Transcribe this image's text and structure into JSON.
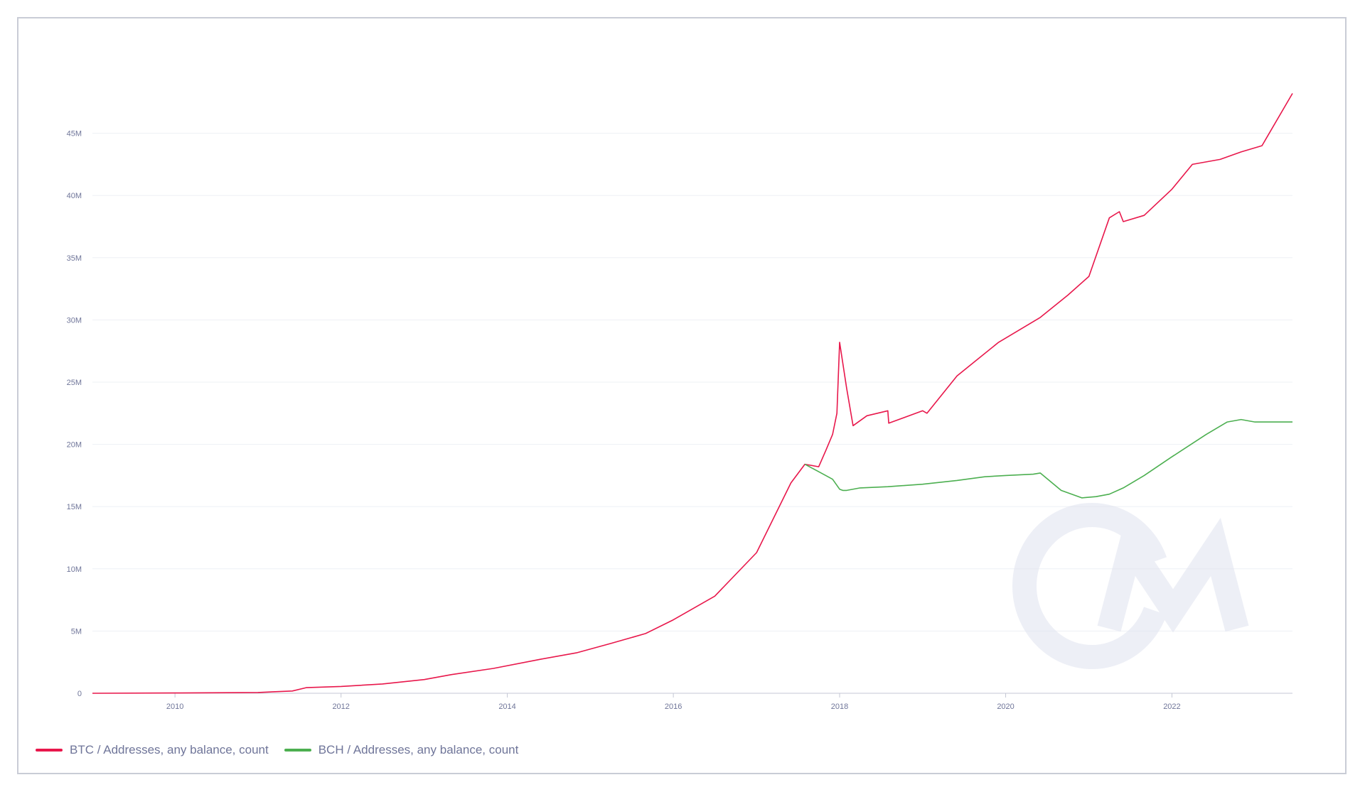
{
  "chart_data": {
    "type": "line",
    "xlabel": "",
    "ylabel": "",
    "x_ticks": [
      "2010",
      "2012",
      "2014",
      "2016",
      "2018",
      "2020",
      "2022"
    ],
    "y_ticks": [
      "0",
      "5M",
      "10M",
      "15M",
      "20M",
      "25M",
      "30M",
      "35M",
      "40M",
      "45M"
    ],
    "xlim": [
      "2009-01-03",
      "2023-06-15"
    ],
    "ylim": [
      0,
      50000000
    ],
    "grid": true,
    "legend_position": "bottom-left",
    "watermark": "CM",
    "series": [
      {
        "name": "BTC / Addresses, any balance, count",
        "color": "#e8174b",
        "x": [
          "2009-01-03",
          "2010-01-01",
          "2011-01-01",
          "2011-06-01",
          "2011-08-01",
          "2012-01-01",
          "2012-07-01",
          "2013-01-01",
          "2013-05-01",
          "2013-11-01",
          "2014-06-01",
          "2014-11-01",
          "2015-04-01",
          "2015-09-01",
          "2016-01-01",
          "2016-07-01",
          "2017-01-01",
          "2017-06-01",
          "2017-08-01",
          "2017-10-01",
          "2017-11-01",
          "2017-12-01",
          "2017-12-20",
          "2018-01-01",
          "2018-02-01",
          "2018-03-01",
          "2018-05-01",
          "2018-08-01",
          "2018-08-05",
          "2019-01-01",
          "2019-01-20",
          "2019-06-01",
          "2019-12-01",
          "2020-06-01",
          "2020-10-01",
          "2021-01-01",
          "2021-04-01",
          "2021-05-15",
          "2021-06-01",
          "2021-09-01",
          "2022-01-01",
          "2022-04-01",
          "2022-08-01",
          "2022-11-01",
          "2023-02-01",
          "2023-06-15"
        ],
        "values": [
          0,
          20000,
          60000,
          180000,
          450000,
          550000,
          750000,
          1100000,
          1500000,
          2000000,
          2750000,
          3250000,
          4000000,
          4800000,
          5900000,
          7800000,
          11300000,
          16900000,
          18400000,
          18200000,
          19500000,
          20800000,
          22500000,
          28200000,
          24500000,
          21500000,
          22300000,
          22700000,
          21700000,
          22700000,
          22500000,
          25500000,
          28200000,
          30200000,
          32000000,
          33500000,
          38200000,
          38700000,
          37900000,
          38400000,
          40500000,
          42500000,
          42900000,
          43500000,
          44000000,
          48200000
        ]
      },
      {
        "name": "BCH / Addresses, any balance, count",
        "color": "#4caf50",
        "x": [
          "2017-08-01",
          "2017-09-01",
          "2017-10-01",
          "2017-11-01",
          "2017-12-01",
          "2018-01-01",
          "2018-01-15",
          "2018-02-01",
          "2018-04-01",
          "2018-08-01",
          "2019-01-01",
          "2019-06-01",
          "2019-10-01",
          "2020-01-01",
          "2020-05-01",
          "2020-06-01",
          "2020-09-01",
          "2020-12-01",
          "2021-02-01",
          "2021-04-01",
          "2021-06-01",
          "2021-09-01",
          "2022-01-01",
          "2022-06-01",
          "2022-09-01",
          "2022-11-01",
          "2023-01-01",
          "2023-06-15"
        ],
        "values": [
          18400000,
          18100000,
          17800000,
          17500000,
          17200000,
          16400000,
          16300000,
          16300000,
          16500000,
          16600000,
          16800000,
          17100000,
          17400000,
          17500000,
          17600000,
          17700000,
          16300000,
          15700000,
          15800000,
          16000000,
          16500000,
          17500000,
          19000000,
          20800000,
          21800000,
          22000000,
          21800000,
          21800000
        ]
      }
    ]
  }
}
